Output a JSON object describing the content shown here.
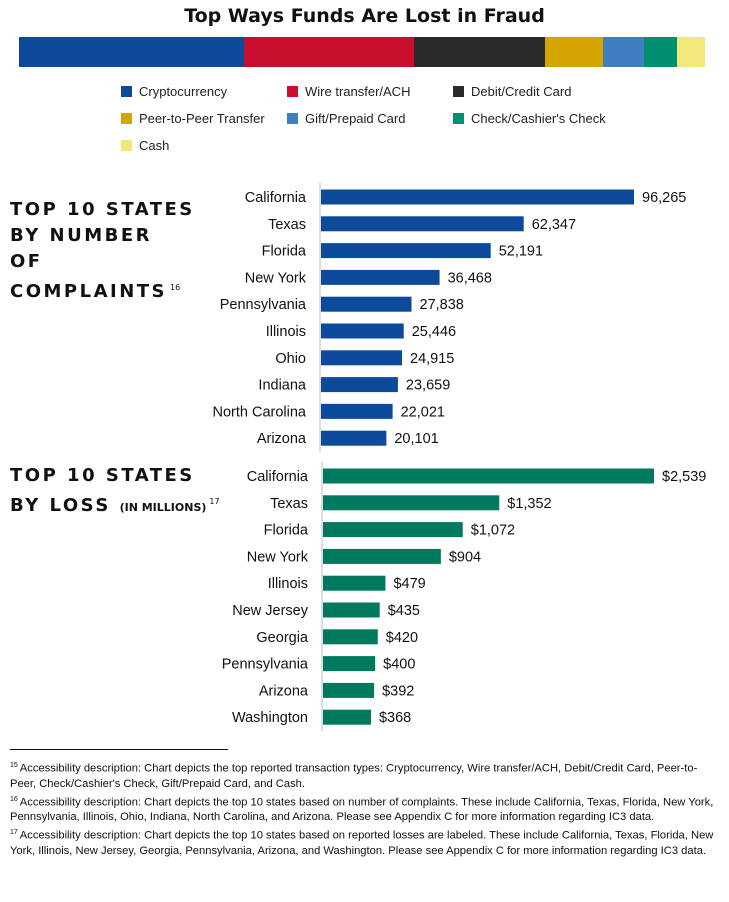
{
  "title": "Top Ways Funds Are Lost in Fraud",
  "colors": {
    "complaints_bar": "#0d4a9c",
    "loss_bar": "#007a5e"
  },
  "legend": [
    {
      "label": "Cryptocurrency",
      "color": "#0d4a9c"
    },
    {
      "label": "Wire transfer/ACH",
      "color": "#c8102e"
    },
    {
      "label": "Debit/Credit Card",
      "color": "#2b2b2b"
    },
    {
      "label": "Peer-to-Peer Transfer",
      "color": "#d4a500"
    },
    {
      "label": "Gift/Prepaid Card",
      "color": "#3d7fc1"
    },
    {
      "label": "Check/Cashier's Check",
      "color": "#009070"
    },
    {
      "label": "Cash",
      "color": "#f2e77a"
    }
  ],
  "sections": {
    "complaints": {
      "title_lines": [
        "TOP 10 STATES",
        "BY NUMBER",
        "OF",
        "COMPLAINTS"
      ],
      "footnote_ref": "16"
    },
    "loss": {
      "title_lines": [
        "TOP 10 STATES",
        "BY LOSS"
      ],
      "qualifier": "(IN MILLIONS)",
      "footnote_ref": "17"
    }
  },
  "chart_data": [
    {
      "type": "bar",
      "title": "Top Ways Funds Are Lost in Fraud",
      "orientation": "stacked-horizontal",
      "categories": [
        "Cryptocurrency",
        "Wire transfer/ACH",
        "Debit/Credit Card",
        "Peer-to-Peer Transfer",
        "Gift/Prepaid Card",
        "Check/Cashier's Check",
        "Cash"
      ],
      "values": [
        32.8,
        24.8,
        19.1,
        8.5,
        5.9,
        4.8,
        4.1
      ],
      "legend": "bottom"
    },
    {
      "type": "bar",
      "title": "TOP 10 STATES BY NUMBER OF COMPLAINTS",
      "orientation": "horizontal",
      "categories": [
        "California",
        "Texas",
        "Florida",
        "New York",
        "Pennsylvania",
        "Illinois",
        "Ohio",
        "Indiana",
        "North Carolina",
        "Arizona"
      ],
      "values": [
        96265,
        62347,
        52191,
        36468,
        27838,
        25446,
        24915,
        23659,
        22021,
        20101
      ],
      "labels": [
        "96,265",
        "62,347",
        "52,191",
        "36,468",
        "27,838",
        "25,446",
        "24,915",
        "23,659",
        "22,021",
        "20,101"
      ],
      "xlim": [
        0,
        96265
      ]
    },
    {
      "type": "bar",
      "title": "TOP 10 STATES BY LOSS (IN MILLIONS)",
      "orientation": "horizontal",
      "categories": [
        "California",
        "Texas",
        "Florida",
        "New York",
        "Illinois",
        "New Jersey",
        "Georgia",
        "Pennsylvania",
        "Arizona",
        "Washington"
      ],
      "values": [
        2539,
        1352,
        1072,
        904,
        479,
        435,
        420,
        400,
        392,
        368
      ],
      "labels": [
        "$2,539",
        "$1,352",
        "$1,072",
        "$904",
        "$479",
        "$435",
        "$420",
        "$400",
        "$392",
        "$368"
      ],
      "xlim": [
        0,
        2539
      ]
    }
  ],
  "footnotes": [
    {
      "num": "15",
      "text": "Accessibility description: Chart depicts the top reported transaction types: Cryptocurrency, Wire transfer/ACH, Debit/Credit Card, Peer-to-Peer, Check/Cashier's Check, Gift/Prepaid Card, and Cash."
    },
    {
      "num": "16",
      "text": "Accessibility description: Chart depicts the top 10 states based on number of complaints. These include California, Texas, Florida, New York, Pennsylvania, Illinois, Ohio, Indiana, North Carolina, and Arizona. Please see Appendix C for more information regarding IC3 data."
    },
    {
      "num": "17",
      "text": "Accessibility description: Chart depicts the top 10 states based on reported losses are labeled. These include California, Texas, Florida, New York, Illinois, New Jersey, Georgia, Pennsylvania, Arizona, and Washington. Please see Appendix C for more information regarding IC3 data."
    }
  ]
}
